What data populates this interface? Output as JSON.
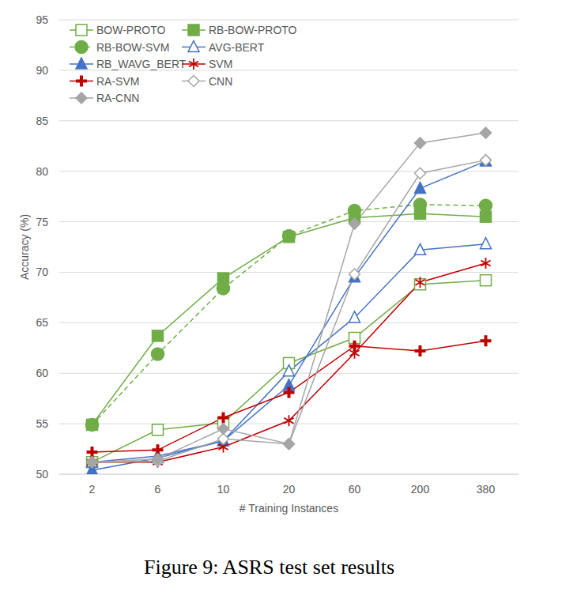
{
  "chart_data": {
    "type": "line",
    "title": "Figure 9: ASRS test set results",
    "x_label": "# Training Instances",
    "y_label": "Accuracy (%)",
    "categories": [
      "2",
      "6",
      "10",
      "20",
      "60",
      "200",
      "380"
    ],
    "ylim": [
      50,
      95
    ],
    "yticks": [
      50,
      55,
      60,
      65,
      70,
      75,
      80,
      85,
      90,
      95
    ],
    "grid": true,
    "legend": "top-left",
    "series": [
      {
        "name": "BOW-PROTO",
        "color": "#70ad47",
        "marker": "square-open",
        "line_style": "solid",
        "values": [
          51.2,
          54.4,
          55.1,
          61.0,
          63.5,
          68.8,
          69.2
        ]
      },
      {
        "name": "RB-BOW-PROTO",
        "color": "#70ad47",
        "marker": "square",
        "line_style": "solid",
        "values": [
          54.9,
          63.7,
          69.4,
          73.5,
          75.4,
          75.8,
          75.5
        ]
      },
      {
        "name": "RB-BOW-SVM",
        "color": "#70ad47",
        "marker": "circle",
        "line_style": "dashed",
        "values": [
          54.9,
          61.9,
          68.4,
          73.6,
          76.1,
          76.7,
          76.6
        ]
      },
      {
        "name": "AVG-BERT",
        "color": "#4472c4",
        "marker": "triangle-open",
        "line_style": "solid",
        "values": [
          51.2,
          51.8,
          53.3,
          60.2,
          65.5,
          72.2,
          72.8
        ]
      },
      {
        "name": "RB_WAVG_BERT",
        "color": "#4472c4",
        "marker": "triangle",
        "line_style": "solid",
        "values": [
          50.4,
          51.6,
          53.3,
          58.8,
          69.5,
          78.3,
          81.0
        ]
      },
      {
        "name": "SVM",
        "color": "#c00000",
        "marker": "asterisk",
        "line_style": "solid",
        "values": [
          51.2,
          51.2,
          52.7,
          55.3,
          62.0,
          69.0,
          70.9
        ]
      },
      {
        "name": "RA-SVM",
        "color": "#c00000",
        "marker": "plus",
        "line_style": "solid",
        "values": [
          52.2,
          52.4,
          55.6,
          58.1,
          62.7,
          62.2,
          63.2
        ]
      },
      {
        "name": "CNN",
        "color": "#a5a5a5",
        "marker": "diamond-open",
        "line_style": "solid",
        "values": [
          51.2,
          51.3,
          53.5,
          53.0,
          69.8,
          79.8,
          81.1
        ]
      },
      {
        "name": "RA-CNN",
        "color": "#a5a5a5",
        "marker": "diamond",
        "line_style": "solid",
        "values": [
          51.2,
          51.5,
          54.5,
          53.0,
          74.8,
          82.8,
          83.8
        ]
      }
    ]
  }
}
